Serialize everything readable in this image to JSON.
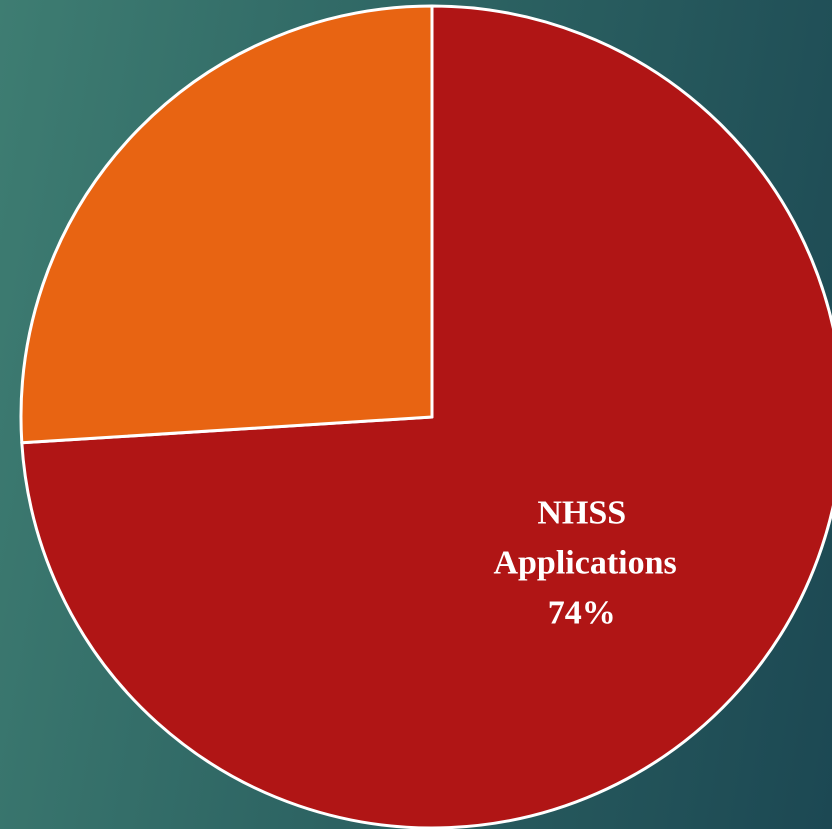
{
  "chart_data": {
    "type": "pie",
    "categories": [
      "NHSS Applications",
      null
    ],
    "values": [
      74,
      26
    ],
    "value_labels": [
      "74%",
      null
    ],
    "colors": [
      "#b01515",
      "#e86412"
    ],
    "start_angle": 0,
    "direction": "clockwise"
  }
}
